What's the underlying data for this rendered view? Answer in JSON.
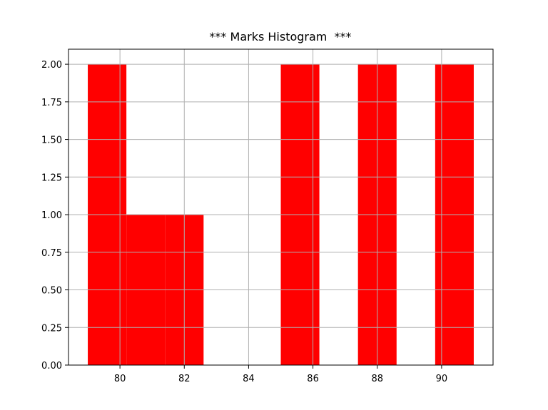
{
  "chart_data": {
    "type": "bar",
    "title": "*** Marks Histogram  ***",
    "xlabel": "",
    "ylabel": "",
    "xlim": [
      78.4,
      91.6
    ],
    "ylim": [
      0,
      2.1
    ],
    "xticks": [
      80,
      82,
      84,
      86,
      88,
      90
    ],
    "xtick_labels": [
      "80",
      "82",
      "84",
      "86",
      "88",
      "90"
    ],
    "yticks": [
      0,
      0.25,
      0.5,
      0.75,
      1.0,
      1.25,
      1.5,
      1.75,
      2.0
    ],
    "ytick_labels": [
      "0.00",
      "0.25",
      "0.50",
      "0.75",
      "1.00",
      "1.25",
      "1.50",
      "1.75",
      "2.00"
    ],
    "grid": true,
    "bin_edges": [
      79,
      80.2,
      81.4,
      82.6,
      83.8,
      85,
      86.2,
      87.4,
      88.6,
      89.8,
      91
    ],
    "values": [
      2,
      1,
      1,
      0,
      0,
      2,
      0,
      2,
      0,
      2
    ],
    "color": "#ff0000"
  }
}
